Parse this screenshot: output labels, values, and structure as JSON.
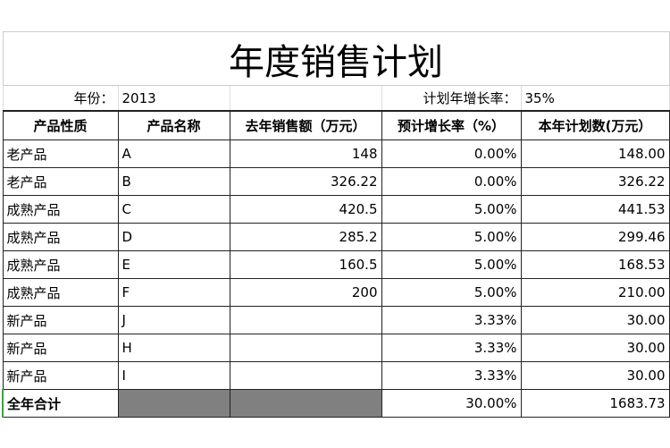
{
  "title": "年度销售计划",
  "info": {
    "year_label": "年份：",
    "year_value": "2013",
    "growth_label": "计划年增长率：",
    "growth_value": "35%"
  },
  "headers": [
    "产品性质",
    "产品名称",
    "去年销售额（万元）",
    "预计增长率（%）",
    "本年计划数(万元）"
  ],
  "rows": [
    [
      "老产品",
      "A",
      "148",
      "0.00%",
      "148.00"
    ],
    [
      "老产品",
      "B",
      "326.22",
      "0.00%",
      "326.22"
    ],
    [
      "成熟产品",
      "C",
      "420.5",
      "5.00%",
      "441.53"
    ],
    [
      "成熟产品",
      "D",
      "285.2",
      "5.00%",
      "299.46"
    ],
    [
      "成熟产品",
      "E",
      "160.5",
      "5.00%",
      "168.53"
    ],
    [
      "成熟产品",
      "F",
      "200",
      "5.00%",
      "210.00"
    ],
    [
      "新产品",
      "J",
      "",
      "3.33%",
      "30.00"
    ],
    [
      "新产品",
      "H",
      "",
      "3.33%",
      "30.00"
    ],
    [
      "新产品",
      "I",
      "",
      "3.33%",
      "30.00"
    ]
  ],
  "total": {
    "label": "全年合计",
    "rate": "30.00%",
    "plan": "1683.73"
  },
  "colors": {
    "grey_fill": "#808080",
    "border": "#222222",
    "selection": "#33aa33"
  }
}
